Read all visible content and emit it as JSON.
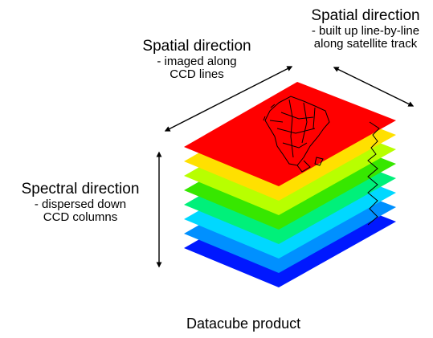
{
  "labels": {
    "spatial_top_right": {
      "title": "Spatial direction",
      "lines": [
        "- built up line-by-line",
        "along satellite track"
      ]
    },
    "spatial_center": {
      "title": "Spatial direction",
      "lines": [
        "- imaged along",
        "CCD lines"
      ]
    },
    "spectral": {
      "title": "Spectral direction",
      "lines": [
        "- dispersed down",
        "CCD columns"
      ]
    },
    "caption": "Datacube product"
  },
  "layers": {
    "count": 8,
    "colors": [
      "#0018ff",
      "#0090ff",
      "#00d8ff",
      "#00f07a",
      "#37e700",
      "#b8ff00",
      "#ffe000",
      "#ff0000"
    ],
    "top_layer_shows": "map-of-africa"
  }
}
